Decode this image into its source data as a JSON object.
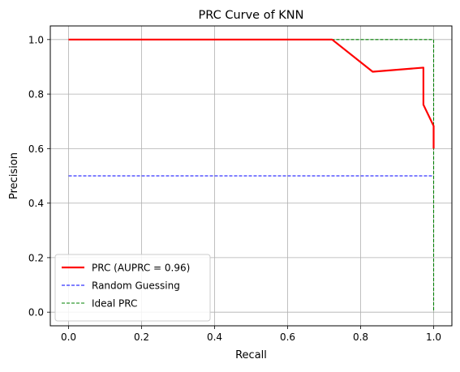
{
  "chart_data": {
    "type": "line",
    "title": "PRC Curve of KNN",
    "xlabel": "Recall",
    "ylabel": "Precision",
    "xlim": [
      -0.05,
      1.05
    ],
    "ylim": [
      -0.05,
      1.05
    ],
    "xticks": [
      0.0,
      0.2,
      0.4,
      0.6,
      0.8,
      1.0
    ],
    "xtick_labels": [
      "0.0",
      "0.2",
      "0.4",
      "0.6",
      "0.8",
      "1.0"
    ],
    "yticks": [
      0.0,
      0.2,
      0.4,
      0.6,
      0.8,
      1.0
    ],
    "ytick_labels": [
      "0.0",
      "0.2",
      "0.4",
      "0.6",
      "0.8",
      "1.0"
    ],
    "grid": true,
    "legend_position": "lower-left",
    "series": [
      {
        "name": "PRC (AUPRC = 0.96)",
        "color": "#ff0000",
        "style": "solid",
        "x": [
          0.0,
          0.722,
          0.833,
          0.972,
          0.972,
          1.0,
          1.0
        ],
        "y": [
          1.0,
          1.0,
          0.882,
          0.897,
          0.761,
          0.683,
          0.6
        ]
      },
      {
        "name": "Random Guessing",
        "color": "#0000ff",
        "style": "dashed",
        "x": [
          0.0,
          1.0
        ],
        "y": [
          0.5,
          0.5
        ]
      },
      {
        "name": "Ideal PRC",
        "color": "#008000",
        "style": "dashed",
        "x": [
          0.0,
          1.0,
          1.0
        ],
        "y": [
          1.0,
          1.0,
          0.0
        ]
      }
    ]
  }
}
